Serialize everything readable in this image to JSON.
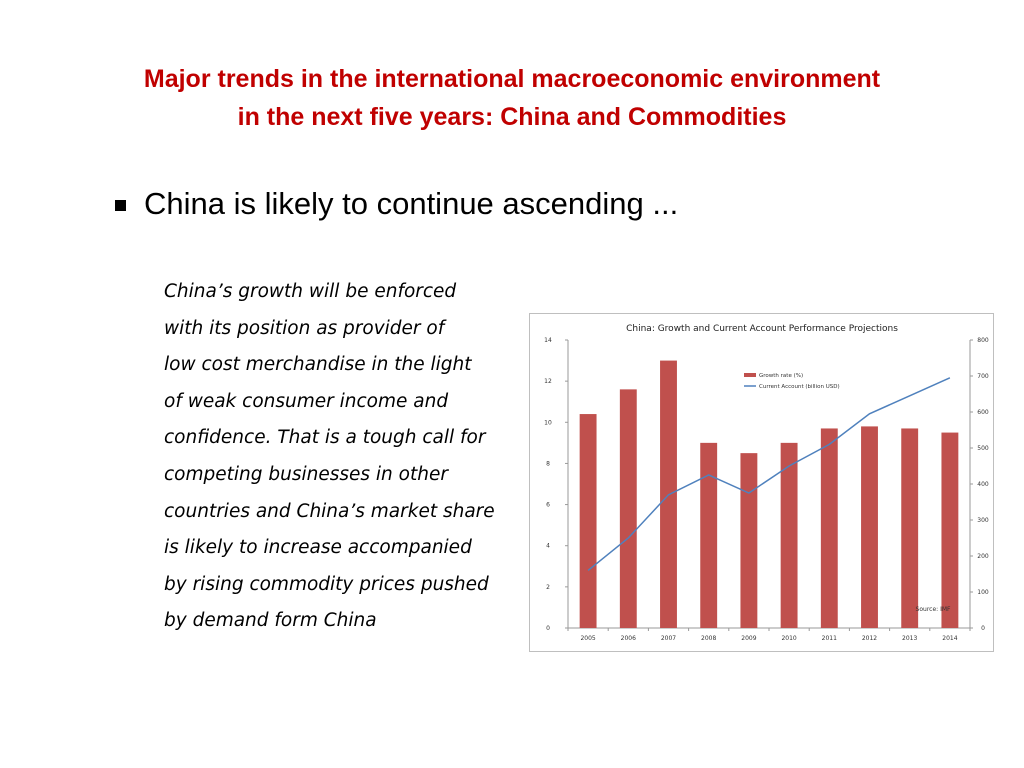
{
  "title": {
    "line1": "Major trends in the international macroeconomic environment",
    "line2": "in the next five years: China and Commodities"
  },
  "bullet": {
    "text": "China is likely to continue ascending ..."
  },
  "body": {
    "lines": [
      "China’s growth will be enforced",
      "with its position as provider of",
      "low cost merchandise in the light",
      "of weak consumer income and",
      "confidence. That is a tough call for",
      "competing businesses in other",
      "countries and China’s market share",
      "is likely to increase accompanied",
      "by rising commodity prices pushed",
      "by demand form China"
    ]
  },
  "colors": {
    "title": "#c00000",
    "bar": "#c0504d",
    "line": "#4f81bd"
  },
  "chart_data": {
    "type": "bar",
    "title": "China: Growth  and Current  Account Performance  Projections",
    "categories": [
      "2005",
      "2006",
      "2007",
      "2008",
      "2009",
      "2010",
      "2011",
      "2012",
      "2013",
      "2014"
    ],
    "series": [
      {
        "name": "Growth rate (%)",
        "type": "bar",
        "axis": "left",
        "values": [
          10.4,
          11.6,
          13.0,
          9.0,
          8.5,
          9.0,
          9.7,
          9.8,
          9.7,
          9.5
        ]
      },
      {
        "name": "Current Account (billion USD)",
        "type": "line",
        "axis": "right",
        "values": [
          160,
          250,
          370,
          425,
          375,
          450,
          510,
          595,
          645,
          695
        ]
      }
    ],
    "ylim_left": [
      0,
      14
    ],
    "yticks_left": [
      "0",
      "2",
      "4",
      "6",
      "8",
      "10",
      "12",
      "14"
    ],
    "ylim_right": [
      0,
      800
    ],
    "yticks_right": [
      "0",
      "100",
      "200",
      "300",
      "400",
      "500",
      "600",
      "700",
      "800"
    ],
    "source": "Source: IMF",
    "grid": false,
    "legend": "top-right"
  }
}
